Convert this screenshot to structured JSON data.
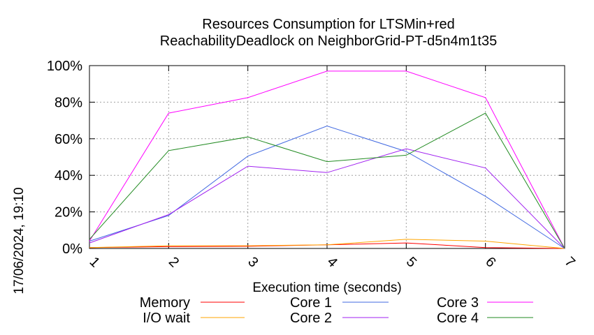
{
  "chart_data": {
    "type": "line",
    "title_line1": "Resources Consumption for LTSMin+red",
    "title_line2": "ReachabilityDeadlock on NeighborGrid-PT-d5n4m1t35",
    "xlabel": "Execution time (seconds)",
    "ylabel": "",
    "x": [
      1,
      2,
      3,
      4,
      5,
      6,
      7
    ],
    "x_tick_labels": [
      "1",
      "2",
      "3",
      "4",
      "5",
      "6",
      "7"
    ],
    "y_tick_labels": [
      "0%",
      "20%",
      "40%",
      "60%",
      "80%",
      "100%"
    ],
    "xlim": [
      1,
      7
    ],
    "ylim": [
      0,
      100
    ],
    "grid": true,
    "legend_position": "bottom",
    "series": [
      {
        "name": "Memory",
        "color": "#ff0000",
        "values": [
          0.5,
          1,
          1.2,
          2,
          3,
          0.5,
          0
        ]
      },
      {
        "name": "I/O wait",
        "color": "#ffa500",
        "values": [
          0.5,
          1.5,
          1.5,
          2,
          5,
          4,
          0
        ]
      },
      {
        "name": "Core 1",
        "color": "#4169e1",
        "values": [
          4,
          18,
          50.5,
          67,
          53,
          28.5,
          0
        ]
      },
      {
        "name": "Core 2",
        "color": "#a020f0",
        "values": [
          3,
          18.5,
          45,
          41.5,
          54.5,
          44,
          0
        ]
      },
      {
        "name": "Core 3",
        "color": "#ff00ff",
        "values": [
          4,
          74,
          82.5,
          97,
          97,
          82.5,
          0
        ]
      },
      {
        "name": "Core 4",
        "color": "#228b22",
        "values": [
          5,
          53.5,
          61,
          47.5,
          51,
          74,
          0
        ]
      }
    ]
  },
  "timestamp": "17/06/2024, 19:10"
}
